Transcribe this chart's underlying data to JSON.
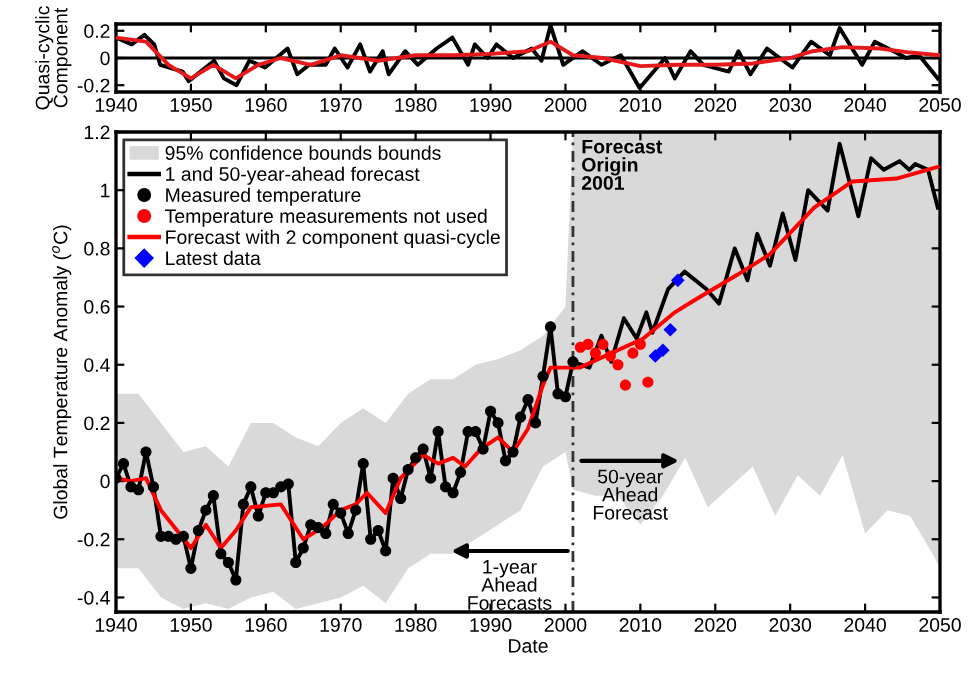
{
  "chart_data": [
    {
      "type": "line",
      "ylabel": "Quasi-cyclic\nComponent",
      "xlim": [
        1940,
        2050
      ],
      "xticks": [
        1940,
        1950,
        1960,
        1970,
        1980,
        1990,
        2000,
        2010,
        2020,
        2030,
        2040,
        2050
      ],
      "ylim": [
        -0.25,
        0.25
      ],
      "yticks": [
        -0.2,
        0,
        0.2
      ],
      "grid": false,
      "legend": false,
      "ref_lines": [
        {
          "axis": "y",
          "value": 0,
          "color": "#000000",
          "line_style": "solid"
        }
      ],
      "series": [
        {
          "color": "#000000",
          "x": [
            1940,
            1942.1,
            1943.8,
            1945.1,
            1945.9,
            1948.9,
            1949.7,
            1953.1,
            1954.4,
            1956.1,
            1957.8,
            1959.9,
            1962.9,
            1964.2,
            1965.8,
            1968,
            1969.2,
            1970.9,
            1972.6,
            1973.9,
            1975.6,
            1976.4,
            1978.6,
            1980.3,
            1982.8,
            1984.9,
            1987,
            1987.9,
            1989.6,
            1990.8,
            1993,
            1995.5,
            1996.8,
            1998,
            1999.7,
            2002.3,
            2004.8,
            2007.4,
            2009.9,
            2013.3,
            2014.6,
            2016.7,
            2018.4,
            2021.8,
            2023.1,
            2024.7,
            2026.9,
            2030.3,
            2032.8,
            2035.3,
            2036.6,
            2039.6,
            2041.3,
            2043.8,
            2045.5,
            2047.2,
            2049.7
          ],
          "values": [
            0.15,
            0.1,
            0.17,
            0.1,
            -0.05,
            -0.1,
            -0.17,
            -0.02,
            -0.15,
            -0.2,
            -0.02,
            -0.07,
            0.07,
            -0.12,
            -0.05,
            -0.05,
            0.07,
            -0.07,
            0.1,
            -0.1,
            0.05,
            -0.12,
            0.05,
            -0.05,
            0.07,
            0.15,
            -0.05,
            0.1,
            0,
            0.1,
            0,
            0.07,
            -0.02,
            0.24,
            -0.05,
            0.05,
            -0.05,
            0.02,
            -0.22,
            0,
            -0.15,
            0.05,
            -0.05,
            -0.1,
            0.05,
            -0.12,
            0.07,
            -0.07,
            0.12,
            0.02,
            0.22,
            -0.05,
            0.12,
            0.05,
            0,
            0.02,
            -0.15
          ]
        },
        {
          "color": "#e41a1c",
          "x": [
            1940,
            1944,
            1947,
            1950,
            1953,
            1956,
            1959,
            1962,
            1966,
            1970,
            1975,
            1980,
            1985,
            1990,
            1995,
            1998,
            2001,
            2005,
            2010,
            2015,
            2020,
            2025,
            2030,
            2033,
            2037,
            2042,
            2046,
            2050
          ],
          "values": [
            0.15,
            0.12,
            -0.05,
            -0.15,
            -0.05,
            -0.15,
            -0.05,
            0,
            -0.05,
            0.02,
            -0.02,
            0.02,
            0.02,
            0.03,
            0.05,
            0.12,
            0.02,
            0,
            -0.06,
            -0.05,
            -0.05,
            -0.04,
            0,
            0.05,
            0.08,
            0.07,
            0.04,
            0.02
          ]
        }
      ]
    },
    {
      "type": "line",
      "xlabel": "Date",
      "ylabel": "Global Temperature Anomaly ($^{o}$C)",
      "xlim": [
        1940,
        2050
      ],
      "xticks": [
        1940,
        1950,
        1960,
        1970,
        1980,
        1990,
        2000,
        2010,
        2020,
        2030,
        2040,
        2050
      ],
      "ylim": [
        -0.45,
        1.2
      ],
      "yticks": [
        -0.4,
        -0.2,
        0,
        0.2,
        0.4,
        0.6,
        0.8,
        1,
        1.2
      ],
      "grid": false,
      "legend": "top left",
      "ref_lines": [
        {
          "axis": "x",
          "value": 2001,
          "label": "Forecast\nOrigin\n2001",
          "color": "#333333",
          "line_style": "dashed"
        }
      ],
      "annotations": [
        "50-year\nAhead\nForecast",
        "1-year\nAhead\nForecasts"
      ],
      "series": [
        {
          "type": "line",
          "name": "95% confidence bounds bounds",
          "color": "#d9d9d9",
          "x": [
            1940,
            1943,
            1946,
            1949,
            1952,
            1955,
            1958,
            1961,
            1964,
            1967,
            1970,
            1973,
            1976,
            1979,
            1982,
            1985,
            1988,
            1991,
            1994,
            1997,
            2000,
            2001,
            2004,
            2007,
            2010,
            2013,
            2016,
            2019,
            2022,
            2025,
            2028,
            2031,
            2034,
            2037,
            2040,
            2043,
            2046,
            2049,
            2050
          ],
          "values": [
            null,
            null,
            null,
            null,
            null,
            null,
            null,
            null,
            null,
            null,
            null,
            null,
            null,
            null,
            null,
            null,
            null,
            null,
            null,
            null,
            null,
            null,
            null,
            null,
            null,
            null,
            null,
            null,
            null,
            null,
            null,
            null,
            null,
            null,
            null,
            null,
            null,
            null,
            null
          ],
          "lower": [
            -0.3,
            -0.3,
            -0.4,
            -0.44,
            -0.42,
            -0.44,
            -0.4,
            -0.38,
            -0.44,
            -0.42,
            -0.4,
            -0.36,
            -0.42,
            -0.3,
            -0.25,
            -0.25,
            -0.2,
            -0.15,
            -0.1,
            0.05,
            0.1,
            -0.03,
            -0.05,
            -0.05,
            -0.15,
            -0.05,
            0.08,
            -0.09,
            -0.02,
            0.05,
            -0.12,
            0.02,
            -0.05,
            0.09,
            -0.18,
            -0.1,
            -0.12,
            -0.25,
            -0.3
          ],
          "upper": [
            0.3,
            0.3,
            0.2,
            0.1,
            0.12,
            0.05,
            0.2,
            0.2,
            0.15,
            0.12,
            0.2,
            0.25,
            0.2,
            0.3,
            0.35,
            0.35,
            0.4,
            0.42,
            0.45,
            0.5,
            0.6,
            1.2,
            1.2,
            1.2,
            1.2,
            1.2,
            1.2,
            1.2,
            1.2,
            1.2,
            1.2,
            1.2,
            1.2,
            1.2,
            1.2,
            1.2,
            1.2,
            1.2,
            1.2
          ]
        },
        {
          "type": "line",
          "name": "1 and 50-year-ahead forecast",
          "color": "#000000",
          "marker": "none",
          "x": [
            1940,
            1941,
            1942,
            1943,
            1944,
            1945,
            1946,
            1947,
            1948,
            1949,
            1950,
            1951,
            1952,
            1953,
            1954,
            1955,
            1956,
            1957,
            1958,
            1959,
            1960,
            1961,
            1962,
            1963,
            1964,
            1965,
            1966,
            1967,
            1968,
            1969,
            1970,
            1971,
            1972,
            1973,
            1974,
            1975,
            1976,
            1977,
            1978,
            1979,
            1980,
            1981,
            1982,
            1983,
            1984,
            1985,
            1986,
            1987,
            1988,
            1989,
            1990,
            1991,
            1992,
            1993,
            1994,
            1995,
            1996,
            1997,
            1998,
            1999,
            2000,
            2001,
            2003.2,
            2004.8,
            2006.1,
            2007.8,
            2009.5,
            2010.8,
            2011.6,
            2013.7,
            2015.9,
            2018.8,
            2020.5,
            2022.6,
            2024.3,
            2025.6,
            2027.3,
            2029,
            2030.7,
            2032.4,
            2035,
            2036.6,
            2039.1,
            2040.8,
            2042.5,
            2044.6,
            2045.9,
            2046.7,
            2048.4,
            2049.7
          ],
          "values": [
            0.01,
            0.06,
            -0.02,
            -0.03,
            0.1,
            -0.02,
            -0.19,
            -0.19,
            -0.2,
            -0.19,
            -0.3,
            -0.17,
            -0.1,
            -0.05,
            -0.25,
            -0.28,
            -0.34,
            -0.08,
            -0.02,
            -0.12,
            -0.04,
            -0.04,
            -0.02,
            -0.01,
            -0.28,
            -0.23,
            -0.15,
            -0.16,
            -0.18,
            -0.08,
            -0.11,
            -0.18,
            -0.1,
            0.06,
            -0.2,
            -0.17,
            -0.24,
            0.01,
            -0.06,
            0.04,
            0.08,
            0.11,
            0.01,
            0.17,
            -0.02,
            -0.04,
            0.03,
            0.17,
            0.17,
            0.11,
            0.24,
            0.2,
            0.07,
            0.1,
            0.22,
            0.28,
            0.2,
            0.36,
            0.53,
            0.3,
            0.29,
            0.41,
            0.39,
            0.5,
            0.41,
            0.56,
            0.49,
            0.58,
            0.51,
            0.66,
            0.72,
            0.66,
            0.61,
            0.8,
            0.69,
            0.85,
            0.74,
            0.92,
            0.76,
            1.0,
            0.93,
            1.16,
            0.91,
            1.11,
            1.07,
            1.1,
            1.07,
            1.09,
            1.07,
            0.94
          ]
        },
        {
          "type": "scatter",
          "name": "Measured temperature",
          "color": "#000000",
          "marker": "circle",
          "x": [
            1940,
            1941,
            1942,
            1943,
            1944,
            1945,
            1946,
            1947,
            1948,
            1949,
            1950,
            1951,
            1952,
            1953,
            1954,
            1955,
            1956,
            1957,
            1958,
            1959,
            1960,
            1961,
            1962,
            1963,
            1964,
            1965,
            1966,
            1967,
            1968,
            1969,
            1970,
            1971,
            1972,
            1973,
            1974,
            1975,
            1976,
            1977,
            1978,
            1979,
            1980,
            1981,
            1982,
            1983,
            1984,
            1985,
            1986,
            1987,
            1988,
            1989,
            1990,
            1991,
            1992,
            1993,
            1994,
            1995,
            1996,
            1997,
            1998,
            1999,
            2000,
            2001
          ],
          "values": [
            0.01,
            0.06,
            -0.02,
            -0.03,
            0.1,
            -0.02,
            -0.19,
            -0.19,
            -0.2,
            -0.19,
            -0.3,
            -0.17,
            -0.1,
            -0.05,
            -0.25,
            -0.28,
            -0.34,
            -0.08,
            -0.02,
            -0.12,
            -0.04,
            -0.04,
            -0.02,
            -0.01,
            -0.28,
            -0.23,
            -0.15,
            -0.16,
            -0.18,
            -0.08,
            -0.11,
            -0.18,
            -0.1,
            0.06,
            -0.2,
            -0.17,
            -0.24,
            0.01,
            -0.06,
            0.04,
            0.08,
            0.11,
            0.01,
            0.17,
            -0.02,
            -0.04,
            0.03,
            0.17,
            0.17,
            0.11,
            0.24,
            0.2,
            0.07,
            0.1,
            0.22,
            0.28,
            0.2,
            0.36,
            0.53,
            0.3,
            0.29,
            0.41
          ]
        },
        {
          "type": "scatter",
          "name": "Temperature measurements not used",
          "color": "#ff0000",
          "marker": "circle",
          "x": [
            2002,
            2003,
            2004,
            2005,
            2006,
            2007,
            2008,
            2009,
            2010,
            2011
          ],
          "values": [
            0.46,
            0.47,
            0.44,
            0.47,
            0.43,
            0.4,
            0.33,
            0.44,
            0.47,
            0.34
          ]
        },
        {
          "type": "line",
          "name": "Forecast with 2 component quasi-cycle",
          "color": "#ff0000",
          "marker": "none",
          "x": [
            1940,
            1942,
            1944,
            1946,
            1950,
            1952,
            1954,
            1956,
            1958,
            1962,
            1965,
            1967.5,
            1970,
            1972,
            1973.5,
            1976,
            1978,
            1981,
            1983,
            1985,
            1986.6,
            1988.7,
            1991,
            1993,
            1995,
            1997,
            1998,
            2000,
            2001.9,
            2010.4,
            2014.6,
            2017.1,
            2023,
            2027.3,
            2033.2,
            2038.3,
            2044.2,
            2049.7
          ],
          "values": [
            0.01,
            0.0,
            0.01,
            -0.1,
            -0.23,
            -0.15,
            -0.23,
            -0.17,
            -0.09,
            -0.08,
            -0.2,
            -0.16,
            -0.1,
            -0.08,
            -0.04,
            -0.11,
            0.01,
            0.09,
            0.06,
            0.08,
            0.05,
            0.11,
            0.15,
            0.1,
            0.18,
            0.33,
            0.39,
            0.39,
            0.39,
            0.49,
            0.58,
            0.62,
            0.71,
            0.78,
            0.94,
            1.03,
            1.04,
            1.08
          ]
        },
        {
          "type": "scatter",
          "name": "Latest data",
          "color": "#0000ff",
          "marker": "diamond",
          "x": [
            2012,
            2013,
            2014,
            2015
          ],
          "values": [
            0.43,
            0.45,
            0.52,
            0.69
          ]
        }
      ]
    }
  ]
}
